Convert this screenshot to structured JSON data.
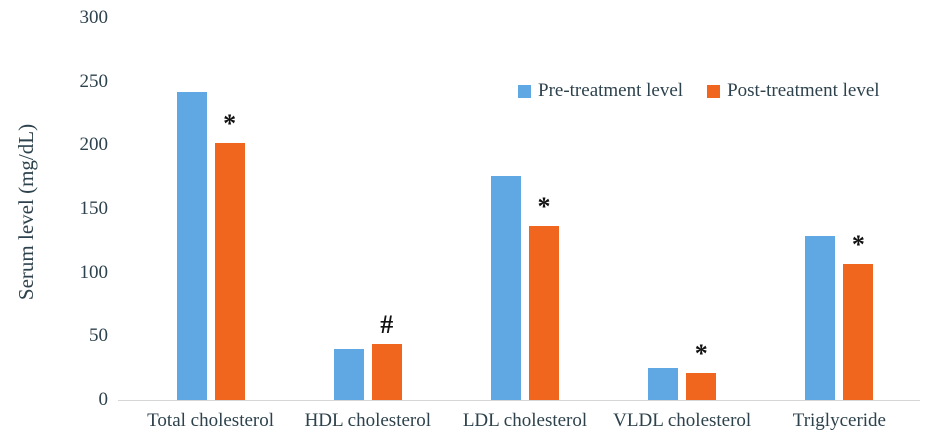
{
  "chart_data": {
    "type": "bar",
    "title": "",
    "xlabel": "",
    "ylabel": "Serum level (mg/dL)",
    "ylim": [
      0,
      300
    ],
    "yticks": [
      0,
      50,
      100,
      150,
      200,
      250,
      300
    ],
    "grid": false,
    "legend_position": "top-right",
    "categories": [
      "Total cholesterol",
      "HDL cholesterol",
      "LDL cholesterol",
      "VLDL cholesterol",
      "Triglyceride"
    ],
    "series": [
      {
        "name": "Pre-treatment level",
        "color": "#5fa8e3",
        "values": [
          242,
          40,
          176,
          25,
          129
        ]
      },
      {
        "name": "Post-treatment level",
        "color": "#f1661f",
        "values": [
          202,
          44,
          137,
          21,
          107
        ]
      }
    ],
    "annotations": [
      {
        "category_index": 0,
        "series_index": 1,
        "text": "*"
      },
      {
        "category_index": 1,
        "series_index": 1,
        "text": "#"
      },
      {
        "category_index": 2,
        "series_index": 1,
        "text": "*"
      },
      {
        "category_index": 3,
        "series_index": 1,
        "text": "*"
      },
      {
        "category_index": 4,
        "series_index": 1,
        "text": "*"
      }
    ]
  }
}
